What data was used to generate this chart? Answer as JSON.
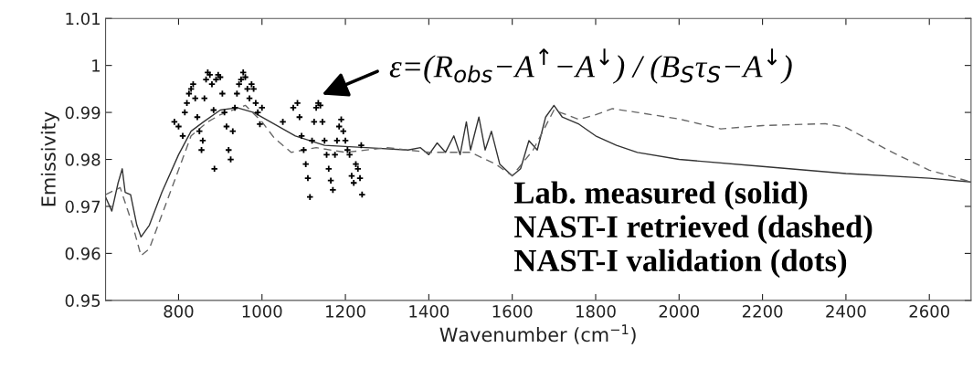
{
  "chart_data": {
    "type": "line",
    "xlabel": "Wavenumber (cm$^{−1}$)",
    "ylabel": "Emissivity",
    "xlim": [
      625,
      2700
    ],
    "xticks": [
      800,
      1000,
      1200,
      1400,
      1600,
      1800,
      2000,
      2200,
      2400,
      2600
    ],
    "ylim": [
      0.95,
      1.01
    ],
    "yticks": [
      0.95,
      0.96,
      0.97,
      0.98,
      0.99,
      1,
      1.01
    ],
    "grid": false,
    "legend": false,
    "annotations": [
      "ε=(R$_{obs}$−A$^{↑}$−A$^{↓}$) / (B$_{S}$τ$_{S}$−A$^{↓}$)",
      "Lab. measured (solid)",
      "NAST-I retrieved (dashed)",
      "NAST-I validation (dots)"
    ],
    "series": [
      {
        "line_style": "solid",
        "marker": "none",
        "color": "#333333",
        "x": [
          625,
          640,
          655,
          665,
          672,
          685,
          700,
          710,
          730,
          760,
          800,
          830,
          860,
          900,
          940,
          980,
          1020,
          1080,
          1150,
          1250,
          1350,
          1380,
          1400,
          1420,
          1440,
          1460,
          1475,
          1490,
          1500,
          1520,
          1535,
          1550,
          1570,
          1600,
          1620,
          1640,
          1660,
          1680,
          1700,
          1720,
          1760,
          1800,
          1850,
          1900,
          2000,
          2200,
          2400,
          2600,
          2700
        ],
        "values": [
          0.972,
          0.969,
          0.975,
          0.978,
          0.973,
          0.9725,
          0.966,
          0.9635,
          0.966,
          0.973,
          0.981,
          0.986,
          0.988,
          0.9905,
          0.991,
          0.99,
          0.988,
          0.985,
          0.983,
          0.9825,
          0.982,
          0.9825,
          0.981,
          0.9835,
          0.9815,
          0.985,
          0.981,
          0.988,
          0.982,
          0.989,
          0.982,
          0.986,
          0.979,
          0.9765,
          0.978,
          0.984,
          0.982,
          0.989,
          0.9915,
          0.989,
          0.9875,
          0.985,
          0.983,
          0.9815,
          0.98,
          0.9785,
          0.977,
          0.976,
          0.9752
        ]
      },
      {
        "line_style": "dashed",
        "marker": "none",
        "color": "#666666",
        "x": [
          625,
          660,
          690,
          710,
          730,
          780,
          830,
          870,
          900,
          960,
          1000,
          1030,
          1070,
          1130,
          1200,
          1300,
          1400,
          1500,
          1560,
          1600,
          1650,
          1700,
          1760,
          1800,
          1840,
          1900,
          2000,
          2100,
          2200,
          2350,
          2400,
          2500,
          2600,
          2700
        ],
        "values": [
          0.9725,
          0.974,
          0.966,
          0.9595,
          0.961,
          0.973,
          0.985,
          0.988,
          0.9895,
          0.9915,
          0.988,
          0.9845,
          0.9815,
          0.9825,
          0.9815,
          0.9825,
          0.9815,
          0.9815,
          0.979,
          0.9765,
          0.982,
          0.9905,
          0.9885,
          0.9895,
          0.9908,
          0.99,
          0.9886,
          0.9865,
          0.9872,
          0.9876,
          0.9868,
          0.982,
          0.9777,
          0.9752
        ]
      },
      {
        "type": "scatter",
        "marker": "cross",
        "color": "#000000",
        "x": [
          790,
          800,
          810,
          815,
          820,
          825,
          830,
          835,
          840,
          845,
          850,
          855,
          858,
          862,
          866,
          870,
          875,
          880,
          884,
          886,
          890,
          895,
          900,
          905,
          910,
          915,
          920,
          925,
          930,
          935,
          940,
          945,
          950,
          955,
          960,
          965,
          970,
          975,
          980,
          985,
          990,
          995,
          1000,
          1050,
          1075,
          1085,
          1090,
          1095,
          1100,
          1105,
          1110,
          1115,
          1120,
          1125,
          1130,
          1135,
          1140,
          1145,
          1150,
          1155,
          1160,
          1165,
          1170,
          1175,
          1180,
          1185,
          1190,
          1195,
          1200,
          1205,
          1210,
          1215,
          1220,
          1225,
          1230,
          1235,
          1238,
          1240
        ],
        "values": [
          0.988,
          0.987,
          0.985,
          0.99,
          0.992,
          0.994,
          0.995,
          0.996,
          0.993,
          0.989,
          0.986,
          0.982,
          0.984,
          0.993,
          0.997,
          0.9985,
          0.998,
          0.996,
          0.9905,
          0.978,
          0.997,
          0.998,
          0.9975,
          0.994,
          0.99,
          0.987,
          0.982,
          0.98,
          0.986,
          0.991,
          0.994,
          0.996,
          0.997,
          0.9985,
          0.9975,
          0.995,
          0.993,
          0.996,
          0.995,
          0.992,
          0.99,
          0.9875,
          0.991,
          0.988,
          0.991,
          0.992,
          0.989,
          0.985,
          0.982,
          0.979,
          0.976,
          0.972,
          0.984,
          0.988,
          0.991,
          0.992,
          0.9915,
          0.988,
          0.984,
          0.981,
          0.978,
          0.9755,
          0.9735,
          0.981,
          0.984,
          0.987,
          0.9885,
          0.986,
          0.984,
          0.982,
          0.981,
          0.9765,
          0.975,
          0.979,
          0.978,
          0.976,
          0.983,
          0.9725
        ]
      }
    ]
  }
}
